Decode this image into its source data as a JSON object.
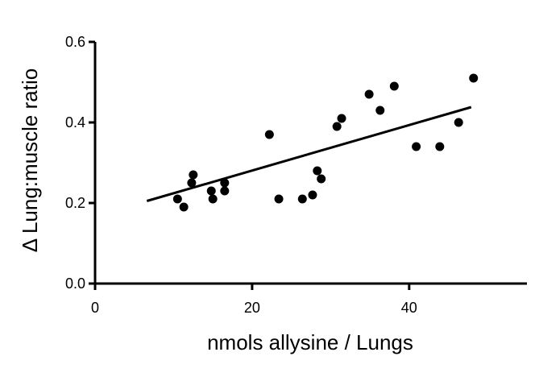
{
  "chart_data": {
    "type": "scatter",
    "xlabel": "nmols allysine / Lungs",
    "ylabel": "Δ Lung:muscle ratio",
    "xlim": [
      0,
      55
    ],
    "ylim": [
      0,
      0.6
    ],
    "xticks": [
      0,
      20,
      40
    ],
    "xtick_labels": [
      "0",
      "20",
      "40"
    ],
    "yticks": [
      0.0,
      0.2,
      0.4,
      0.6
    ],
    "ytick_labels": [
      "0.0",
      "0.2",
      "0.4",
      "0.6"
    ],
    "grid": false,
    "colors": {
      "points": "#000000",
      "line": "#000000",
      "axes": "#000000"
    },
    "points": [
      {
        "x": 10.5,
        "y": 0.21
      },
      {
        "x": 11.3,
        "y": 0.19
      },
      {
        "x": 12.3,
        "y": 0.25
      },
      {
        "x": 12.5,
        "y": 0.27
      },
      {
        "x": 14.8,
        "y": 0.23
      },
      {
        "x": 15.0,
        "y": 0.21
      },
      {
        "x": 16.5,
        "y": 0.25
      },
      {
        "x": 16.5,
        "y": 0.23
      },
      {
        "x": 22.2,
        "y": 0.37
      },
      {
        "x": 23.4,
        "y": 0.21
      },
      {
        "x": 26.4,
        "y": 0.21
      },
      {
        "x": 27.7,
        "y": 0.22
      },
      {
        "x": 28.3,
        "y": 0.28
      },
      {
        "x": 28.8,
        "y": 0.26
      },
      {
        "x": 30.8,
        "y": 0.39
      },
      {
        "x": 31.4,
        "y": 0.41
      },
      {
        "x": 34.9,
        "y": 0.47
      },
      {
        "x": 36.3,
        "y": 0.43
      },
      {
        "x": 38.1,
        "y": 0.49
      },
      {
        "x": 40.9,
        "y": 0.34
      },
      {
        "x": 43.9,
        "y": 0.34
      },
      {
        "x": 46.3,
        "y": 0.4
      },
      {
        "x": 48.2,
        "y": 0.51
      }
    ],
    "regression_line": {
      "x": [
        6.6,
        47.9
      ],
      "y": [
        0.205,
        0.438
      ]
    }
  }
}
